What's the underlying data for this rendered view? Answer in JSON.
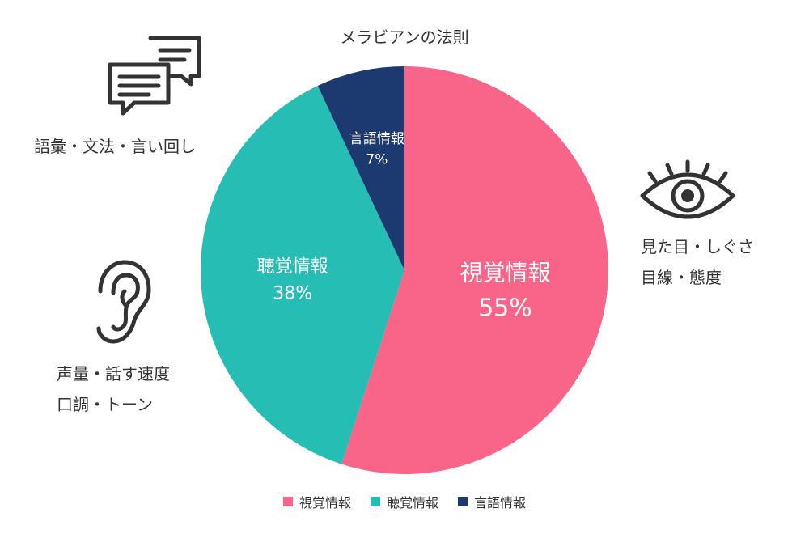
{
  "chart_data": {
    "type": "pie",
    "title": "メラビアンの法則",
    "slices": [
      {
        "label": "視覚情報",
        "value": 55,
        "value_label": "55%",
        "color": "#F86589"
      },
      {
        "label": "聴覚情報",
        "value": 38,
        "value_label": "38%",
        "color": "#26BDB4"
      },
      {
        "label": "言語情報",
        "value": 7,
        "value_label": "7%",
        "color": "#1C3970"
      }
    ],
    "legend_position": "bottom"
  },
  "annotations": {
    "verbal": [
      "語彙・文法・言い回し"
    ],
    "visual": [
      "見た目・しぐさ",
      "目線・態度"
    ],
    "vocal": [
      "声量・話す速度",
      "口調・トーン"
    ]
  },
  "icons": {
    "verbal": "chat-bubbles-icon",
    "visual": "eye-icon",
    "vocal": "ear-icon"
  }
}
